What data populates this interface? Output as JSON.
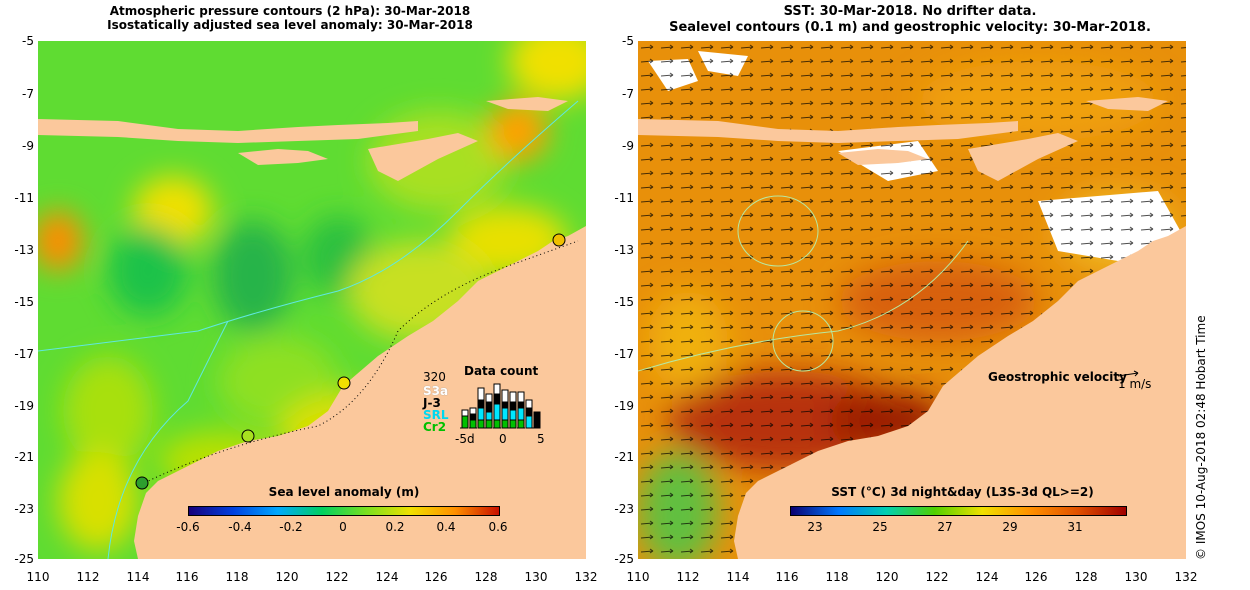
{
  "left_panel": {
    "title_line1": "Atmospheric pressure contours (2 hPa): 30-Mar-2018",
    "title_line2": "Isostatically adjusted sea level anomaly: 30-Mar-2018",
    "colorbar_title": "Sea level anomaly (m)",
    "colorbar_ticks": [
      "-0.6",
      "-0.4",
      "-0.2",
      "0",
      "0.2",
      "0.4",
      "0.6"
    ],
    "colorbar_colors": [
      "#16007a",
      "#0040e0",
      "#00a8ff",
      "#00d060",
      "#78e020",
      "#f0e000",
      "#ff9000",
      "#c81000"
    ],
    "inset": {
      "title": "Data count",
      "max_label": "320",
      "satellites": [
        {
          "name": "S3a",
          "color": "#ffffff"
        },
        {
          "name": "J-3",
          "color": "#000000"
        },
        {
          "name": "SRL",
          "color": "#00e8ff"
        },
        {
          "name": "Cr2",
          "color": "#00d000"
        }
      ],
      "axis_labels": [
        "-5d",
        "0",
        "5"
      ]
    }
  },
  "right_panel": {
    "title_line1": "SST: 30-Mar-2018. No drifter data.",
    "title_line2": "Sealevel contours (0.1 m) and geostrophic velocity: 30-Mar-2018.",
    "velocity_label": "Geostrophic velocity",
    "velocity_scale": "1 m/s",
    "colorbar_title": "SST (°C) 3d night&day (L3S-3d QL>=2)",
    "colorbar_ticks": [
      "23",
      "25",
      "27",
      "29",
      "31"
    ],
    "colorbar_colors": [
      "#0a0070",
      "#0078ff",
      "#00d0b0",
      "#50d000",
      "#f0e000",
      "#ff9000",
      "#e05000",
      "#a00000"
    ]
  },
  "axes": {
    "y_ticks": [
      "-5",
      "-7",
      "-9",
      "-11",
      "-13",
      "-15",
      "-17",
      "-19",
      "-21",
      "-23",
      "-25"
    ],
    "x_ticks": [
      "110",
      "112",
      "114",
      "116",
      "118",
      "120",
      "122",
      "124",
      "126",
      "128",
      "130",
      "132"
    ]
  },
  "credit": "© IMOS 10-Aug-2018 02:48 Hobart Time",
  "colors": {
    "land": "#fbc89c",
    "sla_base": "#5fdc32",
    "sst_base": "#e8900a"
  }
}
